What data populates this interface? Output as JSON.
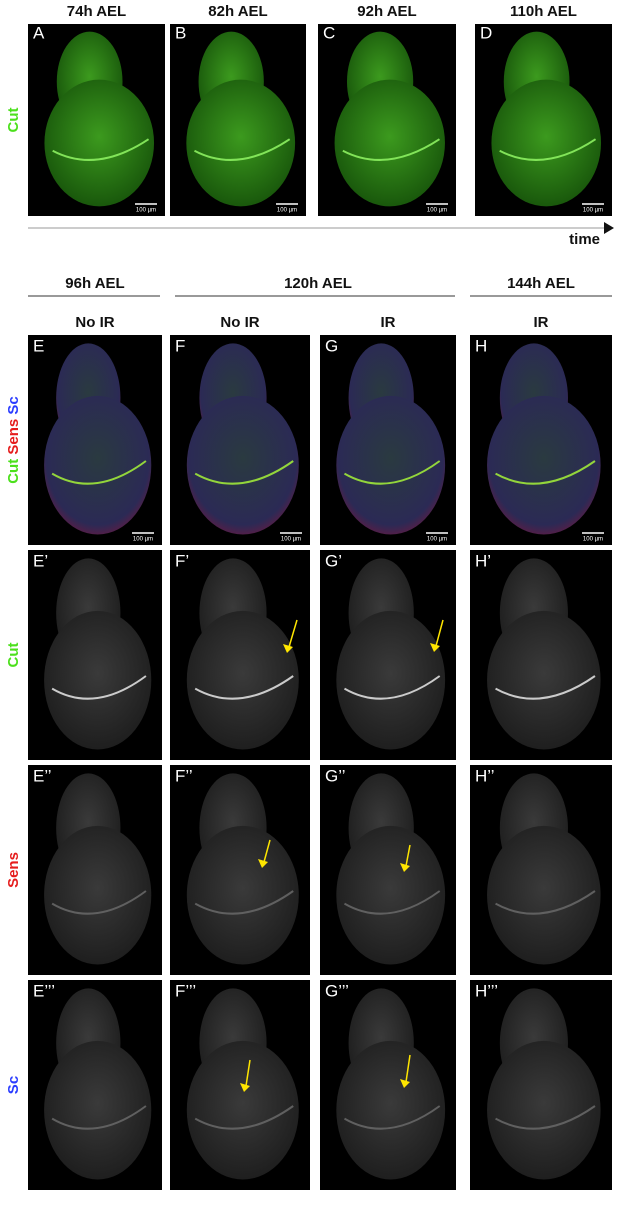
{
  "top_row": {
    "timepoints": [
      "74h AEL",
      "82h AEL",
      "92h AEL",
      "110h AEL"
    ],
    "panels": [
      "A",
      "B",
      "C",
      "D"
    ],
    "channel_label": "Cut",
    "scale_bar": "100 µm",
    "axis_label": "time"
  },
  "bottom": {
    "groups": [
      "96h AEL",
      "120h AEL",
      "144h AEL"
    ],
    "conditions": [
      "No IR",
      "No IR",
      "IR",
      "IR"
    ],
    "channel_labels": [
      "Cut",
      "Sens",
      "Sc"
    ],
    "rows": [
      [
        "E",
        "F",
        "G",
        "H"
      ],
      [
        "E’",
        "F’",
        "G’",
        "H’"
      ],
      [
        "E’’",
        "F’’",
        "G’’",
        "H’’"
      ],
      [
        "E’’’",
        "F’’’",
        "G’’’",
        "H’’’"
      ]
    ]
  }
}
